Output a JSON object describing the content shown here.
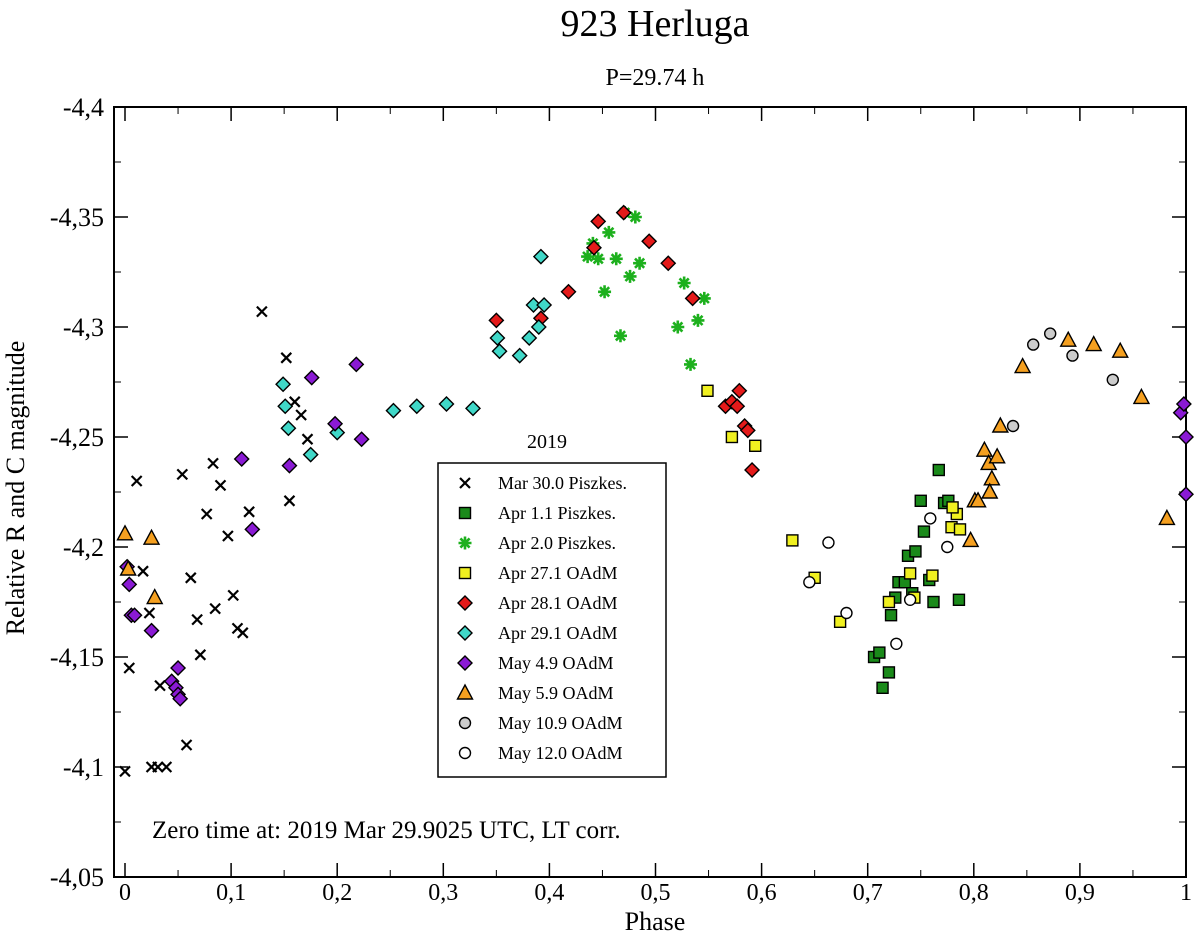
{
  "chart_data": {
    "type": "scatter",
    "title": "923 Herluga",
    "subtitle": "P=29.74 h",
    "xlabel": "Phase",
    "ylabel": "Relative R and C magnitude",
    "xlim": [
      0,
      1
    ],
    "ylim": [
      -4.05,
      -4.4
    ],
    "x_ticks": [
      0,
      0.1,
      0.2,
      0.3,
      0.4,
      0.5,
      0.6,
      0.7,
      0.8,
      0.9,
      1
    ],
    "x_tick_labels": [
      "0",
      "0,1",
      "0,2",
      "0,3",
      "0,4",
      "0,5",
      "0,6",
      "0,7",
      "0,8",
      "0,9",
      "1"
    ],
    "y_ticks": [
      -4.4,
      -4.35,
      -4.3,
      -4.25,
      -4.2,
      -4.15,
      -4.1,
      -4.05
    ],
    "y_tick_labels": [
      "-4,4",
      "-4,35",
      "-4,3",
      "-4,25",
      "-4,2",
      "-4,15",
      "-4,1",
      "-4,05"
    ],
    "legend_title": "2019",
    "legend_position": "center",
    "annotation": "Zero time at: 2019 Mar 29.9025 UTC,  LT corr.",
    "series": [
      {
        "name": "Mar 30.0 Piszkes.",
        "marker": "x",
        "color": "#000000",
        "points": [
          [
            0.0,
            -4.098
          ],
          [
            0.004,
            -4.145
          ],
          [
            0.011,
            -4.23
          ],
          [
            0.017,
            -4.189
          ],
          [
            0.023,
            -4.17
          ],
          [
            0.025,
            -4.1
          ],
          [
            0.031,
            -4.1
          ],
          [
            0.033,
            -4.137
          ],
          [
            0.039,
            -4.1
          ],
          [
            0.054,
            -4.233
          ],
          [
            0.058,
            -4.11
          ],
          [
            0.062,
            -4.186
          ],
          [
            0.068,
            -4.167
          ],
          [
            0.071,
            -4.151
          ],
          [
            0.077,
            -4.215
          ],
          [
            0.083,
            -4.238
          ],
          [
            0.085,
            -4.172
          ],
          [
            0.09,
            -4.228
          ],
          [
            0.097,
            -4.205
          ],
          [
            0.102,
            -4.178
          ],
          [
            0.106,
            -4.163
          ],
          [
            0.111,
            -4.161
          ],
          [
            0.117,
            -4.216
          ],
          [
            0.129,
            -4.307
          ],
          [
            0.152,
            -4.286
          ],
          [
            0.155,
            -4.221
          ],
          [
            0.16,
            -4.266
          ],
          [
            0.166,
            -4.26
          ],
          [
            0.172,
            -4.249
          ]
        ]
      },
      {
        "name": "Apr 1.1 Piszkes.",
        "marker": "square",
        "color": "#1a8a1a",
        "points": [
          [
            0.706,
            -4.15
          ],
          [
            0.711,
            -4.152
          ],
          [
            0.714,
            -4.136
          ],
          [
            0.72,
            -4.143
          ],
          [
            0.722,
            -4.169
          ],
          [
            0.726,
            -4.177
          ],
          [
            0.729,
            -4.184
          ],
          [
            0.735,
            -4.184
          ],
          [
            0.738,
            -4.196
          ],
          [
            0.742,
            -4.179
          ],
          [
            0.745,
            -4.198
          ],
          [
            0.75,
            -4.221
          ],
          [
            0.753,
            -4.207
          ],
          [
            0.758,
            -4.185
          ],
          [
            0.762,
            -4.175
          ],
          [
            0.767,
            -4.235
          ],
          [
            0.772,
            -4.22
          ],
          [
            0.776,
            -4.221
          ],
          [
            0.786,
            -4.176
          ]
        ]
      },
      {
        "name": "Apr 2.0 Piszkes.",
        "marker": "asterisk",
        "color": "#1db01d",
        "points": [
          [
            0.436,
            -4.332
          ],
          [
            0.441,
            -4.338
          ],
          [
            0.446,
            -4.331
          ],
          [
            0.452,
            -4.316
          ],
          [
            0.456,
            -4.343
          ],
          [
            0.463,
            -4.331
          ],
          [
            0.467,
            -4.296
          ],
          [
            0.471,
            -4.352
          ],
          [
            0.476,
            -4.323
          ],
          [
            0.481,
            -4.35
          ],
          [
            0.485,
            -4.329
          ],
          [
            0.521,
            -4.3
          ],
          [
            0.527,
            -4.32
          ],
          [
            0.533,
            -4.283
          ],
          [
            0.54,
            -4.303
          ],
          [
            0.546,
            -4.313
          ]
        ]
      },
      {
        "name": "Apr 27.1 OAdM",
        "marker": "square",
        "color": "#f0f020",
        "points": [
          [
            0.549,
            -4.271
          ],
          [
            0.572,
            -4.25
          ],
          [
            0.594,
            -4.246
          ],
          [
            0.629,
            -4.203
          ],
          [
            0.65,
            -4.186
          ],
          [
            0.674,
            -4.166
          ],
          [
            0.72,
            -4.175
          ],
          [
            0.74,
            -4.188
          ],
          [
            0.744,
            -4.177
          ],
          [
            0.761,
            -4.187
          ],
          [
            0.779,
            -4.209
          ],
          [
            0.784,
            -4.215
          ],
          [
            0.78,
            -4.218
          ],
          [
            0.787,
            -4.208
          ]
        ]
      },
      {
        "name": "Apr 28.1 OAdM",
        "marker": "diamond",
        "color": "#e41a1a",
        "points": [
          [
            0.35,
            -4.303
          ],
          [
            0.392,
            -4.304
          ],
          [
            0.418,
            -4.316
          ],
          [
            0.442,
            -4.336
          ],
          [
            0.446,
            -4.348
          ],
          [
            0.47,
            -4.352
          ],
          [
            0.494,
            -4.339
          ],
          [
            0.512,
            -4.329
          ],
          [
            0.535,
            -4.313
          ],
          [
            0.566,
            -4.264
          ],
          [
            0.572,
            -4.266
          ],
          [
            0.577,
            -4.264
          ],
          [
            0.579,
            -4.271
          ],
          [
            0.584,
            -4.255
          ],
          [
            0.587,
            -4.253
          ],
          [
            0.591,
            -4.235
          ]
        ]
      },
      {
        "name": "Apr 29.1 OAdM",
        "marker": "diamond",
        "color": "#40d8c8",
        "points": [
          [
            0.149,
            -4.274
          ],
          [
            0.151,
            -4.264
          ],
          [
            0.154,
            -4.254
          ],
          [
            0.175,
            -4.242
          ],
          [
            0.2,
            -4.252
          ],
          [
            0.253,
            -4.262
          ],
          [
            0.275,
            -4.264
          ],
          [
            0.303,
            -4.265
          ],
          [
            0.328,
            -4.263
          ],
          [
            0.351,
            -4.295
          ],
          [
            0.353,
            -4.289
          ],
          [
            0.372,
            -4.287
          ],
          [
            0.381,
            -4.295
          ],
          [
            0.385,
            -4.31
          ],
          [
            0.39,
            -4.3
          ],
          [
            0.392,
            -4.332
          ],
          [
            0.395,
            -4.31
          ]
        ]
      },
      {
        "name": "May 4.9 OAdM",
        "marker": "diamond",
        "color": "#8a1ad4",
        "points": [
          [
            0.002,
            -4.191
          ],
          [
            0.004,
            -4.183
          ],
          [
            0.006,
            -4.169
          ],
          [
            0.009,
            -4.169
          ],
          [
            0.025,
            -4.162
          ],
          [
            0.044,
            -4.139
          ],
          [
            0.048,
            -4.136
          ],
          [
            0.05,
            -4.133
          ],
          [
            0.052,
            -4.131
          ],
          [
            0.05,
            -4.145
          ],
          [
            0.11,
            -4.24
          ],
          [
            0.12,
            -4.208
          ],
          [
            0.155,
            -4.237
          ],
          [
            0.176,
            -4.277
          ],
          [
            0.198,
            -4.256
          ],
          [
            0.218,
            -4.283
          ],
          [
            0.223,
            -4.249
          ],
          [
            0.995,
            -4.261
          ],
          [
            0.998,
            -4.265
          ],
          [
            1.0,
            -4.25
          ],
          [
            1.0,
            -4.224
          ]
        ]
      },
      {
        "name": "May 5.9 OAdM",
        "marker": "triangle",
        "color": "#f5a020",
        "points": [
          [
            0.0,
            -4.206
          ],
          [
            0.003,
            -4.19
          ],
          [
            0.025,
            -4.204
          ],
          [
            0.028,
            -4.177
          ],
          [
            0.797,
            -4.203
          ],
          [
            0.801,
            -4.221
          ],
          [
            0.804,
            -4.221
          ],
          [
            0.81,
            -4.244
          ],
          [
            0.814,
            -4.238
          ],
          [
            0.817,
            -4.231
          ],
          [
            0.822,
            -4.241
          ],
          [
            0.825,
            -4.255
          ],
          [
            0.846,
            -4.282
          ],
          [
            0.889,
            -4.294
          ],
          [
            0.913,
            -4.292
          ],
          [
            0.938,
            -4.289
          ],
          [
            0.958,
            -4.268
          ],
          [
            0.982,
            -4.213
          ],
          [
            0.815,
            -4.225
          ]
        ]
      },
      {
        "name": "May 10.9 OAdM",
        "marker": "circle",
        "color": "#cccccc",
        "points": [
          [
            0.837,
            -4.255
          ],
          [
            0.856,
            -4.292
          ],
          [
            0.872,
            -4.297
          ],
          [
            0.893,
            -4.287
          ],
          [
            0.931,
            -4.276
          ]
        ]
      },
      {
        "name": "May 12.0 OAdM",
        "marker": "circle",
        "color": "#ffffff",
        "points": [
          [
            0.645,
            -4.184
          ],
          [
            0.663,
            -4.202
          ],
          [
            0.68,
            -4.17
          ],
          [
            0.727,
            -4.156
          ],
          [
            0.74,
            -4.176
          ],
          [
            0.759,
            -4.213
          ],
          [
            0.775,
            -4.2
          ]
        ]
      }
    ]
  }
}
